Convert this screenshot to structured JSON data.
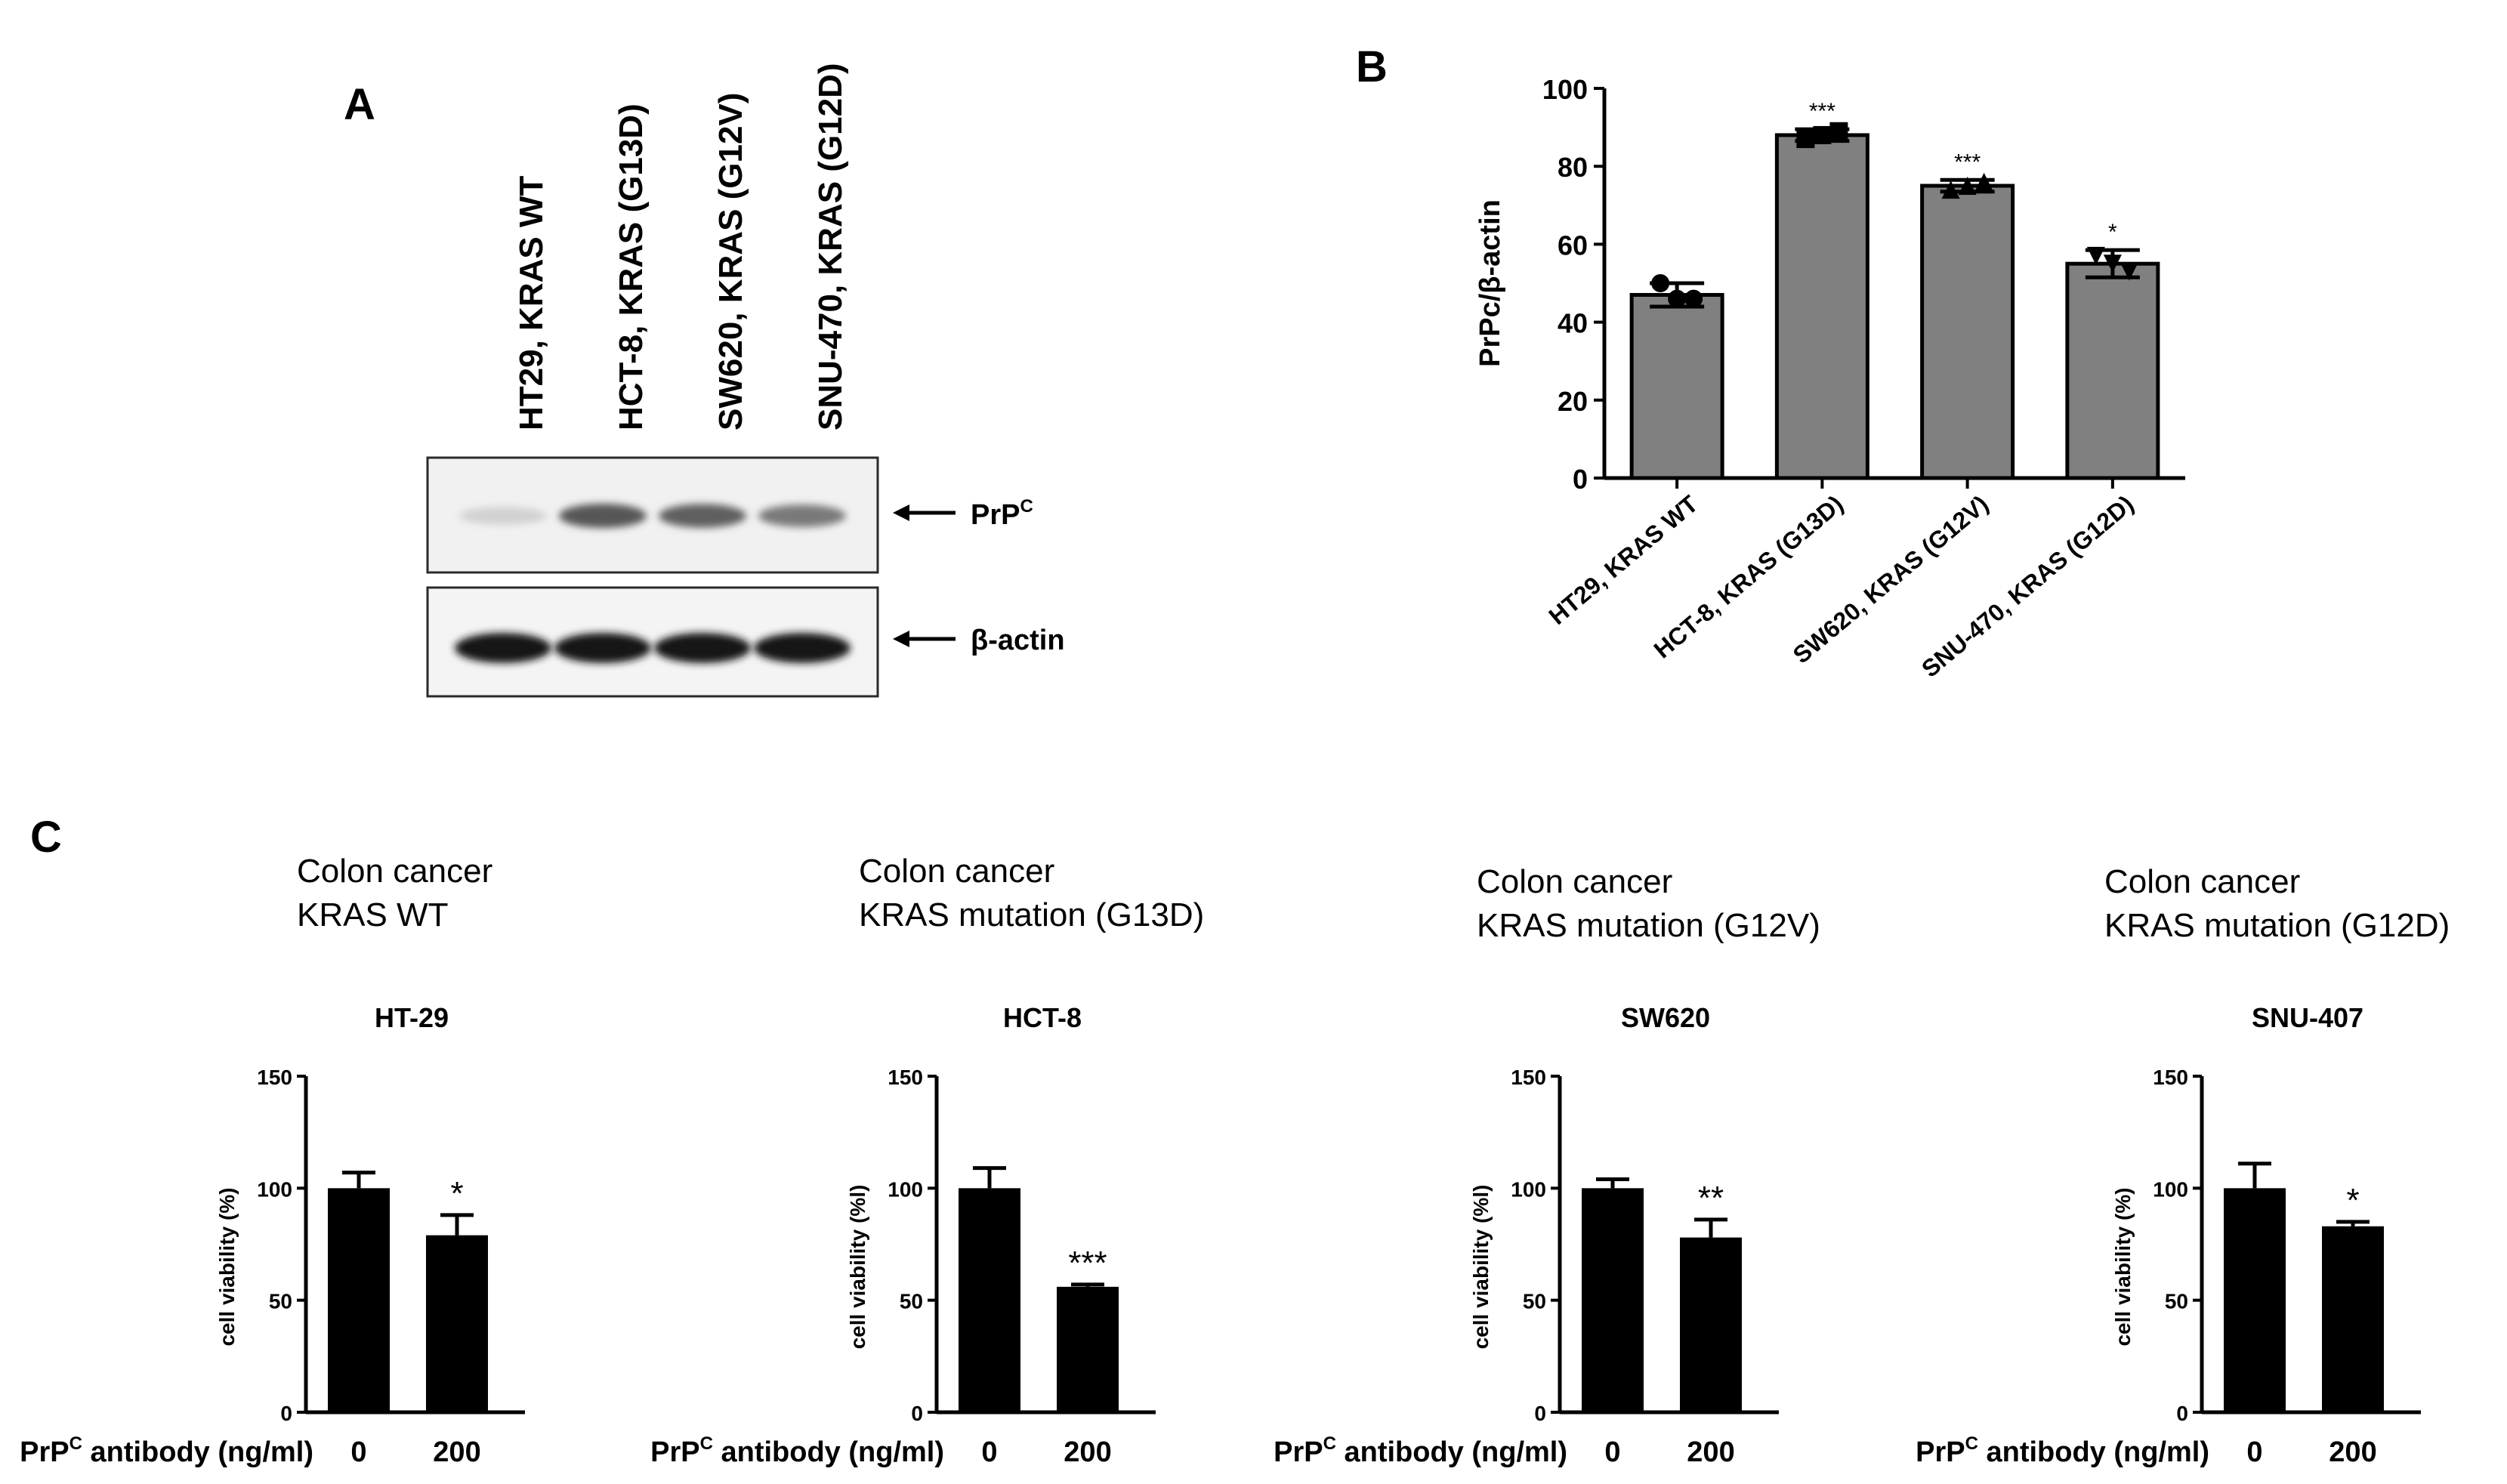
{
  "panel_a": {
    "letter": "A",
    "lanes": [
      "HT29, KRAS WT",
      "HCT-8, KRAS (G13D)",
      "SW620, KRAS (G12V)",
      "SNU-470, KRAS (G12D)"
    ],
    "bands": [
      {
        "label": "PrP",
        "label_sup": "C",
        "intensity": [
          0.15,
          0.85,
          0.8,
          0.65
        ]
      },
      {
        "label": "β-actin",
        "label_sup": "",
        "intensity": [
          1.0,
          1.0,
          1.0,
          1.0
        ]
      }
    ]
  },
  "chart_data": [
    {
      "id": "B",
      "type": "bar",
      "panel_letter": "B",
      "ylabel": "PrPc/β-actin",
      "ylim": [
        0,
        100
      ],
      "yticks": [
        0,
        20,
        40,
        60,
        80,
        100
      ],
      "categories": [
        "HT29, KRAS WT",
        "HCT-8,  KRAS (G13D)",
        "SW620,  KRAS (G12V)",
        "SNU-470, KRAS (G12D)"
      ],
      "values": [
        47,
        88,
        75,
        55
      ],
      "errors": [
        3,
        1.5,
        1.5,
        3.5
      ],
      "points": [
        [
          50,
          46,
          46
        ],
        [
          87,
          88,
          89
        ],
        [
          74,
          75,
          76
        ],
        [
          57,
          55,
          53
        ]
      ],
      "markers": [
        "circle",
        "square",
        "triangle",
        "triangle-down"
      ],
      "significance": [
        "",
        "***",
        "***",
        "*"
      ],
      "bar_color": "#808080"
    },
    {
      "id": "C1",
      "type": "bar",
      "panel_letter": "C",
      "subtitle": [
        "Colon cancer",
        "KRAS WT"
      ],
      "title": "HT-29",
      "ylabel": "cell viability (%)",
      "xlabel": "PrPC antibody (ng/ml)",
      "xlabel_main": "PrP",
      "xlabel_sup": "C",
      "xlabel_rest": " antibody (ng/ml)",
      "ylim": [
        0,
        150
      ],
      "yticks": [
        0,
        50,
        100,
        150
      ],
      "categories": [
        "0",
        "200"
      ],
      "values": [
        100,
        79
      ],
      "errors": [
        7,
        9
      ],
      "significance": [
        "",
        "*"
      ],
      "bar_color": "#000000"
    },
    {
      "id": "C2",
      "type": "bar",
      "subtitle": [
        "Colon cancer",
        "KRAS mutation (G13D)"
      ],
      "title": "HCT-8",
      "ylabel": "cell viability (%l)",
      "xlabel_main": "PrP",
      "xlabel_sup": "C",
      "xlabel_rest": " antibody (ng/ml)",
      "ylim": [
        0,
        150
      ],
      "yticks": [
        0,
        50,
        100,
        150
      ],
      "categories": [
        "0",
        "200"
      ],
      "values": [
        100,
        56
      ],
      "errors": [
        9,
        1
      ],
      "significance": [
        "",
        "***"
      ],
      "bar_color": "#000000"
    },
    {
      "id": "C3",
      "type": "bar",
      "subtitle": [
        "Colon cancer",
        "KRAS mutation (G12V)"
      ],
      "title": "SW620",
      "ylabel": "cell viability (%l)",
      "xlabel_main": "PrP",
      "xlabel_sup": "C",
      "xlabel_rest": " antibody (ng/ml)",
      "ylim": [
        0,
        150
      ],
      "yticks": [
        0,
        50,
        100,
        150
      ],
      "categories": [
        "0",
        "200"
      ],
      "values": [
        100,
        78
      ],
      "errors": [
        4,
        8
      ],
      "significance": [
        "",
        "**"
      ],
      "bar_color": "#000000"
    },
    {
      "id": "C4",
      "type": "bar",
      "subtitle": [
        "Colon cancer",
        "KRAS mutation (G12D)"
      ],
      "title": "SNU-407",
      "ylabel": "cell viability (%)",
      "xlabel_main": "PrP",
      "xlabel_sup": "C",
      "xlabel_rest": " antibody (ng/ml)",
      "ylim": [
        0,
        150
      ],
      "yticks": [
        0,
        50,
        100,
        150
      ],
      "categories": [
        "0",
        "200"
      ],
      "values": [
        100,
        83
      ],
      "errors": [
        11,
        2
      ],
      "significance": [
        "",
        "*"
      ],
      "bar_color": "#000000"
    }
  ]
}
